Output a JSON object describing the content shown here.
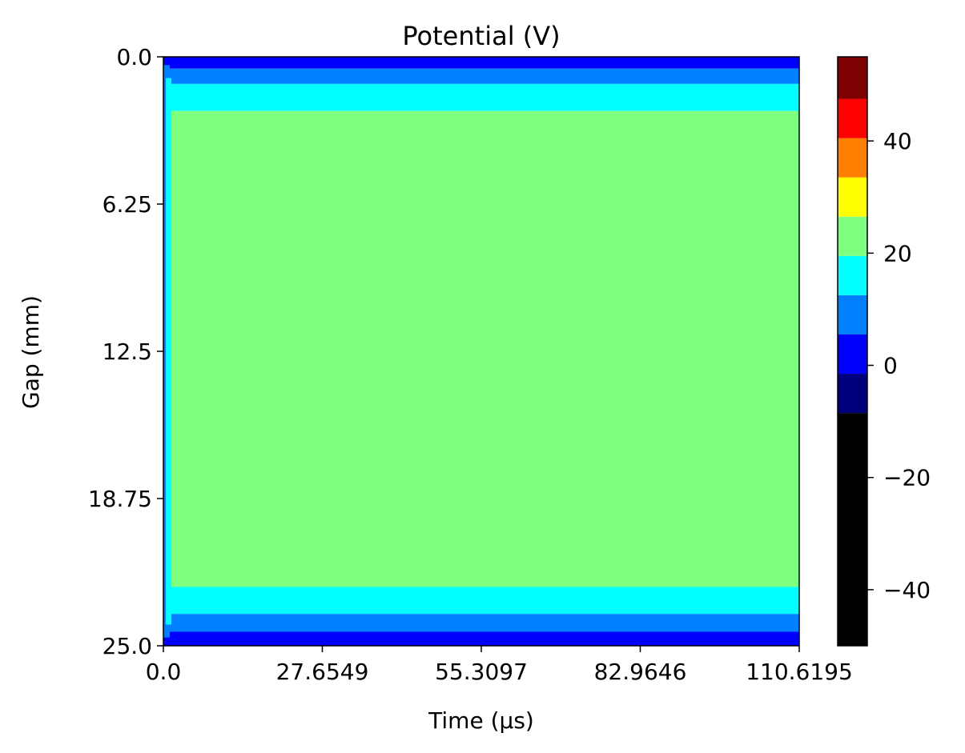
{
  "chart_data": {
    "type": "heatmap",
    "title": "Potential (V)",
    "xlabel": "Time (μs)",
    "ylabel": "Gap (mm)",
    "xlim": [
      0,
      110.6195
    ],
    "ylim": [
      25.0,
      0.0
    ],
    "x_ticks": [
      "0.0",
      "27.6549",
      "55.3097",
      "82.9646",
      "110.6195"
    ],
    "y_ticks": [
      "0.0",
      "6.25",
      "12.5",
      "18.75",
      "25.0"
    ],
    "colormap": "jet",
    "colorbar": {
      "range": [
        -50,
        55
      ],
      "ticks": [
        "40",
        "20",
        "0",
        "−20",
        "−40"
      ],
      "tick_values": [
        40,
        20,
        0,
        -20,
        -40
      ],
      "levels": [
        {
          "from": -50,
          "to": -8.5,
          "color": "#000000"
        },
        {
          "from": -8.5,
          "to": -1.5,
          "color": "#00007f"
        },
        {
          "from": -1.5,
          "to": 5.5,
          "color": "#0000ff"
        },
        {
          "from": 5.5,
          "to": 12.5,
          "color": "#007fff"
        },
        {
          "from": 12.5,
          "to": 19.5,
          "color": "#00ffff"
        },
        {
          "from": 19.5,
          "to": 26.5,
          "color": "#7fff7f"
        },
        {
          "from": 26.5,
          "to": 33.5,
          "color": "#ffff00"
        },
        {
          "from": 33.5,
          "to": 40.5,
          "color": "#ff7f00"
        },
        {
          "from": 40.5,
          "to": 47.5,
          "color": "#ff0000"
        },
        {
          "from": 47.5,
          "to": 55,
          "color": "#7f0000"
        }
      ]
    },
    "field_bands": [
      {
        "gap_from": 0.0,
        "gap_to": 0.5,
        "color": "#0000ff",
        "label": "0 to 5 V"
      },
      {
        "gap_from": 0.5,
        "gap_to": 1.15,
        "color": "#007fff",
        "label": "5 to 12 V"
      },
      {
        "gap_from": 1.15,
        "gap_to": 2.3,
        "color": "#00ffff",
        "label": "12 to 19 V"
      },
      {
        "gap_from": 2.3,
        "gap_to": 22.5,
        "color": "#7fff7f",
        "label": "19 to 26 V"
      },
      {
        "gap_from": 22.5,
        "gap_to": 23.65,
        "color": "#00ffff",
        "label": "12 to 19 V"
      },
      {
        "gap_from": 23.65,
        "gap_to": 24.4,
        "color": "#007fff",
        "label": "5 to 12 V"
      },
      {
        "gap_from": 24.4,
        "gap_to": 25.0,
        "color": "#0000ff",
        "label": "0 to 5 V"
      }
    ],
    "grid": false
  }
}
